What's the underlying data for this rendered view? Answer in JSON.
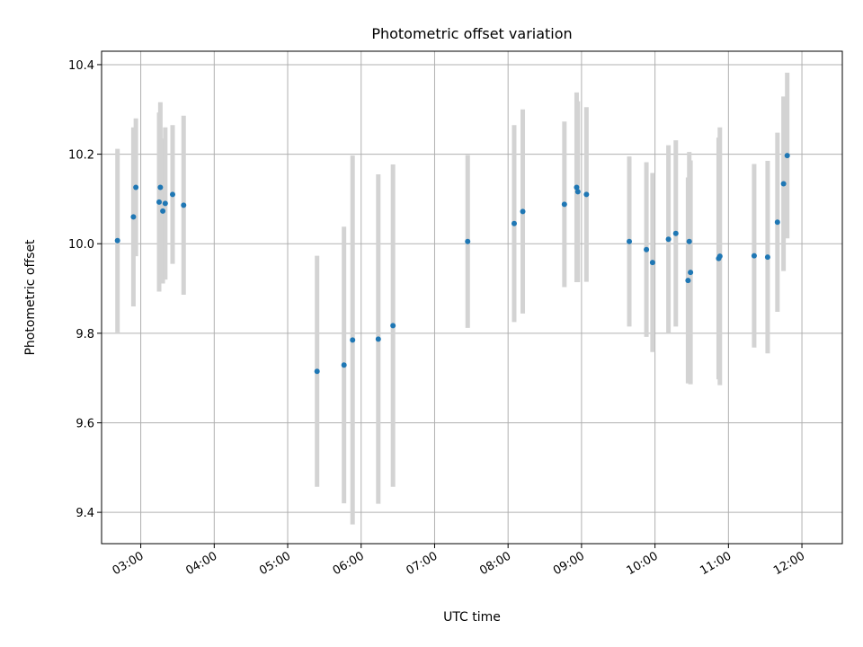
{
  "chart_data": {
    "type": "scatter",
    "title": "Photometric offset variation",
    "xlabel": "UTC time",
    "ylabel": "Photometric offset",
    "x_ticks": [
      "03:00",
      "04:00",
      "05:00",
      "06:00",
      "07:00",
      "08:00",
      "09:00",
      "10:00",
      "11:00",
      "12:00"
    ],
    "y_ticks": [
      "9.4",
      "9.6",
      "9.8",
      "10.0",
      "10.2",
      "10.4"
    ],
    "xlim": [
      "02:28",
      "12:33"
    ],
    "ylim": [
      9.33,
      10.43
    ],
    "grid": true,
    "colors": {
      "points": "#1f77b4",
      "error_bars": "#d3d3d3",
      "grid": "#b0b0b0"
    },
    "points": [
      {
        "time": "02:41",
        "y": 10.007,
        "err": 0.205
      },
      {
        "time": "02:54",
        "y": 10.06,
        "err": 0.2
      },
      {
        "time": "02:56",
        "y": 10.126,
        "err": 0.154
      },
      {
        "time": "03:15",
        "y": 10.093,
        "err": 0.2
      },
      {
        "time": "03:16",
        "y": 10.126,
        "err": 0.19
      },
      {
        "time": "03:18",
        "y": 10.073,
        "err": 0.162
      },
      {
        "time": "03:20",
        "y": 10.09,
        "err": 0.17
      },
      {
        "time": "03:26",
        "y": 10.11,
        "err": 0.155
      },
      {
        "time": "03:35",
        "y": 10.086,
        "err": 0.2
      },
      {
        "time": "05:24",
        "y": 9.715,
        "err": 0.258
      },
      {
        "time": "05:46",
        "y": 9.729,
        "err": 0.309
      },
      {
        "time": "05:53",
        "y": 9.785,
        "err": 0.412
      },
      {
        "time": "06:14",
        "y": 9.787,
        "err": 0.368
      },
      {
        "time": "06:26",
        "y": 9.817,
        "err": 0.36
      },
      {
        "time": "07:27",
        "y": 10.005,
        "err": 0.193
      },
      {
        "time": "08:05",
        "y": 10.045,
        "err": 0.22
      },
      {
        "time": "08:12",
        "y": 10.072,
        "err": 0.228
      },
      {
        "time": "08:46",
        "y": 10.088,
        "err": 0.185
      },
      {
        "time": "08:56",
        "y": 10.126,
        "err": 0.212
      },
      {
        "time": "08:57",
        "y": 10.116,
        "err": 0.202
      },
      {
        "time": "09:04",
        "y": 10.11,
        "err": 0.195
      },
      {
        "time": "09:39",
        "y": 10.005,
        "err": 0.19
      },
      {
        "time": "09:53",
        "y": 9.987,
        "err": 0.195
      },
      {
        "time": "09:58",
        "y": 9.958,
        "err": 0.2
      },
      {
        "time": "10:11",
        "y": 10.01,
        "err": 0.21
      },
      {
        "time": "10:17",
        "y": 10.023,
        "err": 0.208
      },
      {
        "time": "10:27",
        "y": 9.918,
        "err": 0.23
      },
      {
        "time": "10:28",
        "y": 10.005,
        "err": 0.2
      },
      {
        "time": "10:29",
        "y": 9.936,
        "err": 0.25
      },
      {
        "time": "10:52",
        "y": 9.967,
        "err": 0.27
      },
      {
        "time": "10:53",
        "y": 9.972,
        "err": 0.288
      },
      {
        "time": "11:21",
        "y": 9.973,
        "err": 0.205
      },
      {
        "time": "11:32",
        "y": 9.97,
        "err": 0.215
      },
      {
        "time": "11:40",
        "y": 10.048,
        "err": 0.2
      },
      {
        "time": "11:45",
        "y": 10.134,
        "err": 0.195
      },
      {
        "time": "11:48",
        "y": 10.197,
        "err": 0.185
      }
    ]
  }
}
